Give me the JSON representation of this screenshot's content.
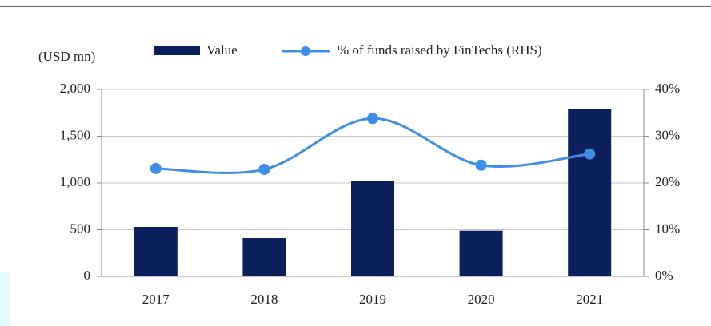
{
  "chart_data": {
    "type": "bar_line",
    "y_axis_label": "(USD mn)",
    "categories": [
      "2017",
      "2018",
      "2019",
      "2020",
      "2021"
    ],
    "series": [
      {
        "name": "Value",
        "type": "bar",
        "color": "#0b1f5c",
        "values": [
          530,
          410,
          1020,
          490,
          1790
        ]
      },
      {
        "name": "% of funds raised by FinTechs (RHS)",
        "type": "line",
        "axis": "y2",
        "color": "#3d8ee6",
        "values": [
          23.1,
          22.9,
          33.8,
          23.8,
          26.2
        ]
      }
    ],
    "ylim": [
      0,
      2000
    ],
    "yticks": [
      0,
      500,
      {
        "value": 1000,
        "label": "1,000"
      },
      {
        "value": 1500,
        "label": "1,500"
      },
      {
        "value": 2000,
        "label": "2,000"
      }
    ],
    "y2lim": [
      0,
      40
    ],
    "y2ticks": [
      {
        "value": 0,
        "label": "0%"
      },
      {
        "value": 10,
        "label": "10%"
      },
      {
        "value": 20,
        "label": "20%"
      },
      {
        "value": 30,
        "label": "30%"
      },
      {
        "value": 40,
        "label": "40%"
      }
    ],
    "grid": true,
    "legend": "top"
  }
}
